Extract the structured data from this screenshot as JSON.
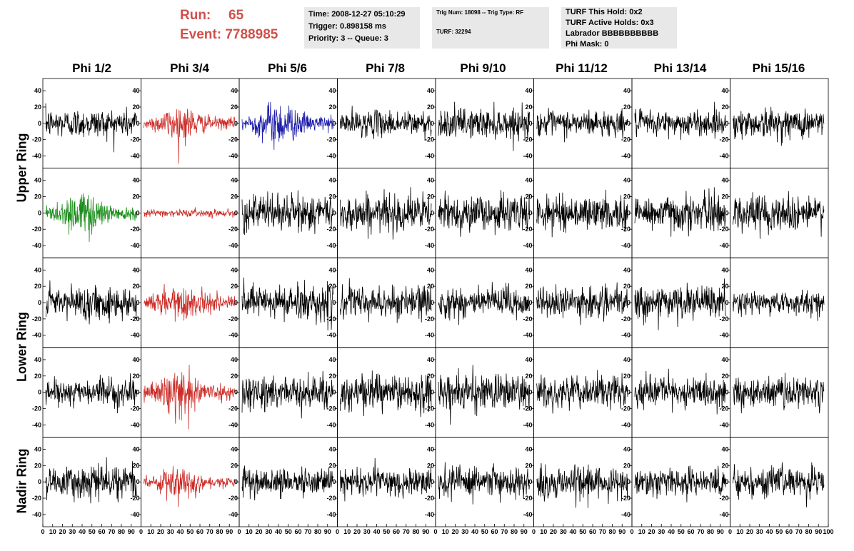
{
  "header": {
    "run_label": "Run:",
    "run_value": "65",
    "event_label": "Event:",
    "event_value": "7788985",
    "time_info": [
      "Time: 2008-12-27 05:10:29",
      "Trigger: 0.898158 ms",
      "Priority: 3 -- Queue: 3"
    ],
    "trig_info": {
      "line1": "Trig Num: 18098 -- Trig Type: RF",
      "line2": "TURF: 32294"
    },
    "turf_info": [
      "TURF This Hold: 0x2",
      "TURF Active Holds: 0x3",
      "Labrador BBBBBBBBBB",
      "Phi Mask: 0"
    ]
  },
  "chart_data": {
    "type": "line",
    "title": "",
    "columns": [
      "Phi 1/2",
      "Phi 3/4",
      "Phi 5/6",
      "Phi 7/8",
      "Phi 9/10",
      "Phi 11/12",
      "Phi 13/14",
      "Phi 15/16"
    ],
    "ring_labels": [
      {
        "label": "Upper Ring",
        "rows": [
          0,
          1
        ]
      },
      {
        "label": "Lower Ring",
        "rows": [
          2,
          3
        ]
      },
      {
        "label": "Nadir Ring",
        "rows": [
          4
        ]
      }
    ],
    "xlim": [
      0,
      100
    ],
    "ylim": [
      -55,
      55
    ],
    "xticks": [
      "0",
      "10",
      "20",
      "30",
      "40",
      "50",
      "60",
      "70",
      "80",
      "90",
      "100"
    ],
    "yticks": [
      "40",
      "20",
      "0",
      "-20",
      "-40"
    ],
    "samples_per_trace": 260,
    "colors": {
      "default": "#000000",
      "red": "#cc2b26",
      "blue": "#1c1ca8",
      "green": "#1a8c1a"
    },
    "panels": [
      {
        "row": 0,
        "col": 0,
        "color": "default",
        "amp": 16,
        "env": "flat"
      },
      {
        "row": 0,
        "col": 1,
        "color": "red",
        "amp": 18,
        "env": "burst"
      },
      {
        "row": 0,
        "col": 2,
        "color": "blue",
        "amp": 22,
        "env": "burst"
      },
      {
        "row": 0,
        "col": 3,
        "color": "default",
        "amp": 14,
        "env": "flat"
      },
      {
        "row": 0,
        "col": 4,
        "color": "default",
        "amp": 16,
        "env": "flat"
      },
      {
        "row": 0,
        "col": 5,
        "color": "default",
        "amp": 14,
        "env": "flat"
      },
      {
        "row": 0,
        "col": 6,
        "color": "default",
        "amp": 14,
        "env": "flat"
      },
      {
        "row": 0,
        "col": 7,
        "color": "default",
        "amp": 16,
        "env": "flat"
      },
      {
        "row": 1,
        "col": 0,
        "color": "green",
        "amp": 22,
        "env": "burst"
      },
      {
        "row": 1,
        "col": 1,
        "color": "red",
        "amp": 4,
        "env": "flat"
      },
      {
        "row": 1,
        "col": 2,
        "color": "default",
        "amp": 20,
        "env": "flat"
      },
      {
        "row": 1,
        "col": 3,
        "color": "default",
        "amp": 20,
        "env": "flat"
      },
      {
        "row": 1,
        "col": 4,
        "color": "default",
        "amp": 20,
        "env": "flat"
      },
      {
        "row": 1,
        "col": 5,
        "color": "default",
        "amp": 18,
        "env": "flat"
      },
      {
        "row": 1,
        "col": 6,
        "color": "default",
        "amp": 20,
        "env": "flat"
      },
      {
        "row": 1,
        "col": 7,
        "color": "default",
        "amp": 20,
        "env": "flat"
      },
      {
        "row": 2,
        "col": 0,
        "color": "default",
        "amp": 18,
        "env": "flat"
      },
      {
        "row": 2,
        "col": 1,
        "color": "red",
        "amp": 20,
        "env": "burst"
      },
      {
        "row": 2,
        "col": 2,
        "color": "default",
        "amp": 20,
        "env": "flat"
      },
      {
        "row": 2,
        "col": 3,
        "color": "default",
        "amp": 18,
        "env": "flat"
      },
      {
        "row": 2,
        "col": 4,
        "color": "default",
        "amp": 18,
        "env": "flat"
      },
      {
        "row": 2,
        "col": 5,
        "color": "default",
        "amp": 16,
        "env": "flat"
      },
      {
        "row": 2,
        "col": 6,
        "color": "default",
        "amp": 18,
        "env": "flat"
      },
      {
        "row": 2,
        "col": 7,
        "color": "default",
        "amp": 12,
        "env": "flat"
      },
      {
        "row": 3,
        "col": 0,
        "color": "default",
        "amp": 14,
        "env": "flat"
      },
      {
        "row": 3,
        "col": 1,
        "color": "red",
        "amp": 22,
        "env": "burst"
      },
      {
        "row": 3,
        "col": 2,
        "color": "default",
        "amp": 18,
        "env": "flat"
      },
      {
        "row": 3,
        "col": 3,
        "color": "default",
        "amp": 20,
        "env": "flat"
      },
      {
        "row": 3,
        "col": 4,
        "color": "default",
        "amp": 20,
        "env": "flat"
      },
      {
        "row": 3,
        "col": 5,
        "color": "default",
        "amp": 18,
        "env": "flat"
      },
      {
        "row": 3,
        "col": 6,
        "color": "default",
        "amp": 16,
        "env": "flat"
      },
      {
        "row": 3,
        "col": 7,
        "color": "default",
        "amp": 18,
        "env": "flat"
      },
      {
        "row": 4,
        "col": 0,
        "color": "default",
        "amp": 18,
        "env": "flat"
      },
      {
        "row": 4,
        "col": 1,
        "color": "red",
        "amp": 16,
        "env": "burst"
      },
      {
        "row": 4,
        "col": 2,
        "color": "default",
        "amp": 14,
        "env": "flat"
      },
      {
        "row": 4,
        "col": 3,
        "color": "default",
        "amp": 16,
        "env": "flat"
      },
      {
        "row": 4,
        "col": 4,
        "color": "default",
        "amp": 16,
        "env": "flat"
      },
      {
        "row": 4,
        "col": 5,
        "color": "default",
        "amp": 18,
        "env": "flat"
      },
      {
        "row": 4,
        "col": 6,
        "color": "default",
        "amp": 16,
        "env": "flat"
      },
      {
        "row": 4,
        "col": 7,
        "color": "default",
        "amp": 16,
        "env": "flat"
      }
    ]
  }
}
